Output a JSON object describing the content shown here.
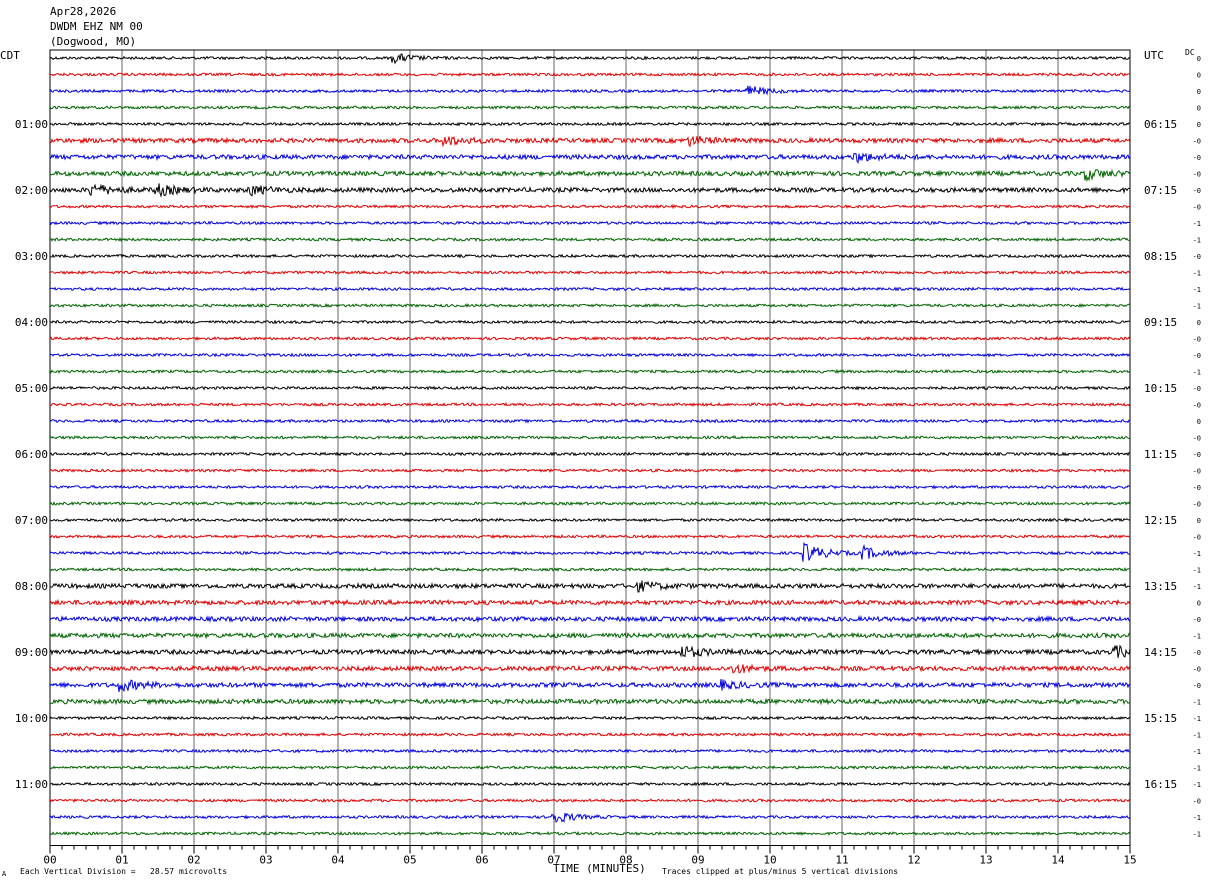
{
  "header": {
    "date": "Apr28,2026",
    "station": "DWDM EHZ NM 00",
    "location": "(Dogwood, MO)"
  },
  "left_label": "CDT",
  "right_label": "UTC",
  "dc_label": "DC",
  "footer": {
    "scale_text": "Each Vertical Division =   28.57 microvolts",
    "xlabel": "TIME (MINUTES)",
    "clip_text": "Traces clipped at plus/minus 5 vertical divisions",
    "corner_mark": "A"
  },
  "chart_data": {
    "type": "line",
    "title": "",
    "xlabel": "TIME (MINUTES)",
    "xlim": [
      0,
      15
    ],
    "x_ticks": [
      "00",
      "01",
      "02",
      "03",
      "04",
      "05",
      "06",
      "07",
      "08",
      "09",
      "10",
      "11",
      "12",
      "13",
      "14",
      "15"
    ],
    "grid": "vertical lines each minute",
    "trace_colors": [
      "#000000",
      "#e00000",
      "#0000e0",
      "#006400"
    ],
    "trace_count": 48,
    "cdt_labels": [
      "01:00",
      "02:00",
      "03:00",
      "04:00",
      "05:00",
      "06:00",
      "07:00",
      "08:00",
      "09:00",
      "10:00",
      "11:00"
    ],
    "utc_labels": [
      "06:15",
      "07:15",
      "08:15",
      "09:15",
      "10:15",
      "11:15",
      "12:15",
      "13:15",
      "14:15",
      "15:15",
      "16:15"
    ],
    "dc_offsets": [
      "0",
      "0",
      "0",
      "0",
      "0",
      "-0",
      "-0",
      "-0",
      "-0",
      "-0",
      "-1",
      "-1",
      "-0",
      "-1",
      "-1",
      "-1",
      "0",
      "-0",
      "-0",
      "-1",
      "-0",
      "-0",
      "0",
      "-0",
      "-0",
      "-0",
      "-0",
      "-0",
      "0",
      "-0",
      "-1",
      "-1",
      "-1",
      "0",
      "-0",
      "-1",
      "-0",
      "-0",
      "-0",
      "-1",
      "-1",
      "-1",
      "-1",
      "-1",
      "-1",
      "-0",
      "-1",
      "-1"
    ],
    "events": [
      {
        "trace": 0,
        "minute": 4.8,
        "amp": 4
      },
      {
        "trace": 2,
        "minute": 9.7,
        "amp": 5
      },
      {
        "trace": 5,
        "minute": 5.5,
        "amp": 4
      },
      {
        "trace": 5,
        "minute": 8.9,
        "amp": 4
      },
      {
        "trace": 6,
        "minute": 11.2,
        "amp": 4
      },
      {
        "trace": 7,
        "minute": 14.4,
        "amp": 5
      },
      {
        "trace": 8,
        "minute": 0.6,
        "amp": 5
      },
      {
        "trace": 8,
        "minute": 1.5,
        "amp": 5
      },
      {
        "trace": 8,
        "minute": 2.8,
        "amp": 4
      },
      {
        "trace": 30,
        "minute": 10.5,
        "amp": 9
      },
      {
        "trace": 30,
        "minute": 11.3,
        "amp": 6
      },
      {
        "trace": 32,
        "minute": 8.2,
        "amp": 4
      },
      {
        "trace": 36,
        "minute": 8.8,
        "amp": 5
      },
      {
        "trace": 36,
        "minute": 14.8,
        "amp": 5
      },
      {
        "trace": 37,
        "minute": 9.5,
        "amp": 4
      },
      {
        "trace": 38,
        "minute": 1.0,
        "amp": 5
      },
      {
        "trace": 38,
        "minute": 9.3,
        "amp": 4
      },
      {
        "trace": 46,
        "minute": 7.0,
        "amp": 6
      }
    ],
    "noisy_traces": [
      5,
      6,
      7,
      8,
      32,
      33,
      34,
      35,
      36,
      37,
      38,
      39
    ]
  }
}
